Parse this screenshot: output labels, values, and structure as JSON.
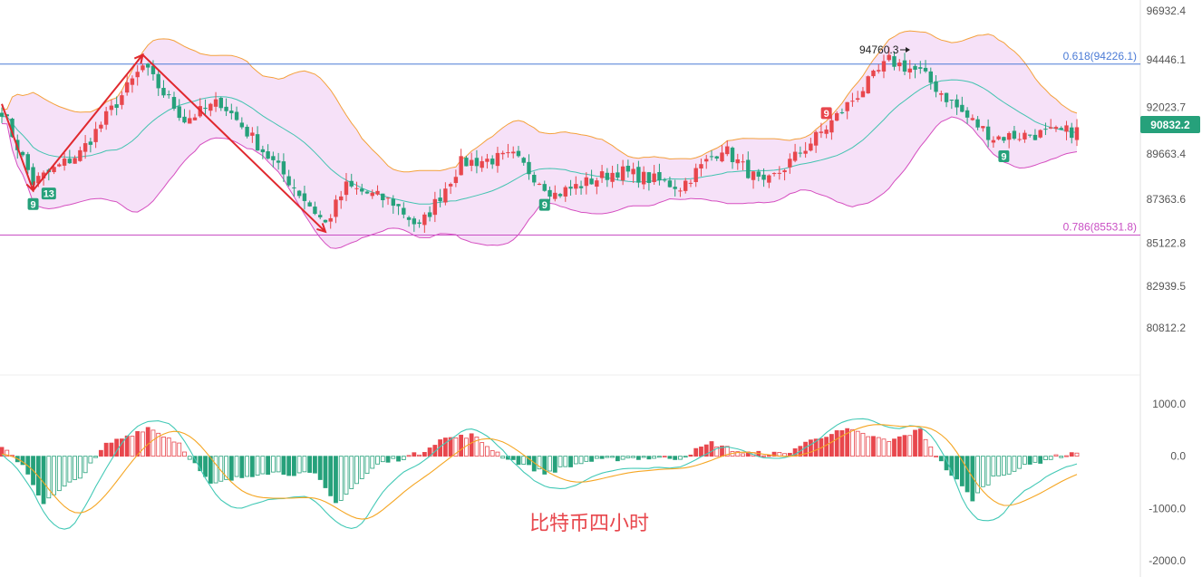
{
  "caption": "比特币四小时",
  "current_price": "90832.2",
  "high_marker": "94760.3",
  "fib": [
    {
      "label": "0.618(94226.1)",
      "value": 94226.1,
      "color": "#4b7bd6"
    },
    {
      "label": "0.786(85531.8)",
      "value": 85531.8,
      "color": "#c94fc4"
    }
  ],
  "price_ticks": [
    "96932.4",
    "94446.1",
    "92023.7",
    "89663.4",
    "87363.6",
    "85122.8",
    "82939.5",
    "80812.2"
  ],
  "macd_ticks": [
    "1000.0",
    "0.0",
    "-1000.0",
    "-2000.0"
  ],
  "td_counts": [
    {
      "label": "9",
      "type": "buy",
      "index": 6
    },
    {
      "label": "13",
      "type": "buy",
      "index": 9
    },
    {
      "label": "9",
      "type": "buy",
      "index": 104
    },
    {
      "label": "9",
      "type": "sell",
      "index": 158
    },
    {
      "label": "9",
      "type": "buy",
      "index": 192
    }
  ],
  "colors": {
    "up": "#e8474d",
    "down": "#26a17b",
    "band_fill": "#f4dcf7",
    "upper_band": "#f4a13c",
    "mid_band": "#43c3b0",
    "lower_band": "#d54fc0",
    "arrow": "#e0282e",
    "diff": "#43c9b6",
    "dea": "#f5a623"
  },
  "chart_data": {
    "type": "candlestick",
    "price_axis": {
      "min": 79500,
      "max": 97800
    },
    "macd_axis": {
      "min": -2100,
      "max": 1200
    },
    "close_anchors": [
      [
        0,
        91900
      ],
      [
        6,
        88200
      ],
      [
        15,
        89700
      ],
      [
        27,
        94100
      ],
      [
        35,
        91400
      ],
      [
        42,
        92300
      ],
      [
        55,
        88300
      ],
      [
        62,
        86100
      ],
      [
        66,
        88000
      ],
      [
        75,
        87200
      ],
      [
        80,
        85900
      ],
      [
        88,
        89200
      ],
      [
        98,
        89500
      ],
      [
        106,
        87600
      ],
      [
        118,
        88800
      ],
      [
        130,
        88000
      ],
      [
        138,
        90000
      ],
      [
        146,
        88000
      ],
      [
        158,
        91000
      ],
      [
        170,
        94400
      ],
      [
        176,
        93800
      ],
      [
        185,
        91500
      ],
      [
        190,
        90500
      ],
      [
        200,
        90700
      ],
      [
        206,
        90832
      ]
    ],
    "macd_anchors": [
      [
        0,
        150
      ],
      [
        4,
        -150
      ],
      [
        8,
        -900
      ],
      [
        16,
        -300
      ],
      [
        20,
        220
      ],
      [
        28,
        550
      ],
      [
        34,
        250
      ],
      [
        40,
        -550
      ],
      [
        50,
        -300
      ],
      [
        60,
        -350
      ],
      [
        64,
        -900
      ],
      [
        72,
        -150
      ],
      [
        80,
        50
      ],
      [
        84,
        320
      ],
      [
        90,
        400
      ],
      [
        96,
        0
      ],
      [
        104,
        -320
      ],
      [
        112,
        -100
      ],
      [
        120,
        -30
      ],
      [
        130,
        -30
      ],
      [
        136,
        250
      ],
      [
        142,
        60
      ],
      [
        150,
        40
      ],
      [
        156,
        350
      ],
      [
        162,
        500
      ],
      [
        170,
        280
      ],
      [
        176,
        500
      ],
      [
        180,
        -120
      ],
      [
        186,
        -820
      ],
      [
        190,
        -400
      ],
      [
        200,
        -60
      ],
      [
        206,
        80
      ]
    ]
  }
}
